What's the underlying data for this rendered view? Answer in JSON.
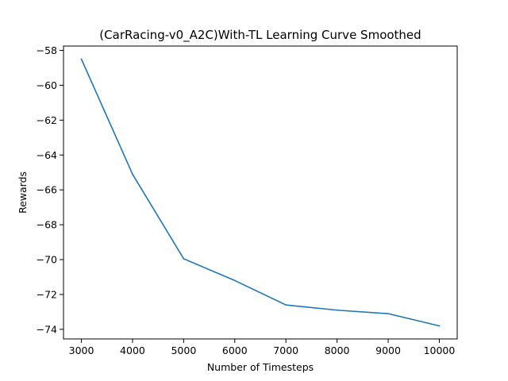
{
  "chart_data": {
    "type": "line",
    "title": "(CarRacing-v0_A2C)With-TL Learning Curve Smoothed",
    "xlabel": "Number of Timesteps",
    "ylabel": "Rewards",
    "xlim": [
      2650,
      10350
    ],
    "ylim": [
      -74.55,
      -57.75
    ],
    "xticks": [
      3000,
      4000,
      5000,
      6000,
      7000,
      8000,
      9000,
      10000
    ],
    "xtick_labels": [
      "3000",
      "4000",
      "5000",
      "6000",
      "7000",
      "8000",
      "9000",
      "10000"
    ],
    "yticks": [
      -58,
      -60,
      -62,
      -64,
      -66,
      -68,
      -70,
      -72,
      -74
    ],
    "ytick_labels": [
      "−58",
      "−60",
      "−62",
      "−64",
      "−66",
      "−68",
      "−70",
      "−72",
      "−74"
    ],
    "grid": false,
    "series": [
      {
        "x": [
          3000,
          4000,
          5000,
          6000,
          7000,
          8000,
          9000,
          10000
        ],
        "y": [
          -58.5,
          -65.1,
          -69.95,
          -71.2,
          -72.6,
          -72.9,
          -73.1,
          -73.8
        ],
        "color": "#1f77b4"
      }
    ]
  }
}
